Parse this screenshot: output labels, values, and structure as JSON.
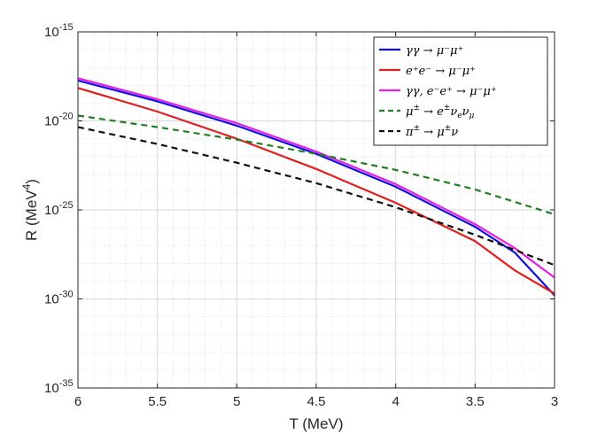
{
  "chart_data": {
    "type": "line",
    "title": "",
    "xlabel": "T (MeV)",
    "ylabel_base": "R (MeV",
    "ylabel_exp": "4",
    "ylabel_close": ")",
    "x_reversed": true,
    "y_scale": "log",
    "xlim": [
      6,
      3
    ],
    "ylim_exponent": [
      -35,
      -15
    ],
    "x_ticks": [
      "6",
      "5.5",
      "5",
      "4.5",
      "4",
      "3.5",
      "3"
    ],
    "y_ticks": [
      {
        "base": "10",
        "exp": "-15"
      },
      {
        "base": "10",
        "exp": "-20"
      },
      {
        "base": "10",
        "exp": "-25"
      },
      {
        "base": "10",
        "exp": "-30"
      },
      {
        "base": "10",
        "exp": "-35"
      }
    ],
    "grid": true,
    "legend_position": "top-right",
    "series": [
      {
        "name": "γγ → μ⁻μ⁺",
        "color": "#1010e0",
        "dash": "solid",
        "points_log10": [
          [
            6.0,
            -17.73
          ],
          [
            5.5,
            -18.9
          ],
          [
            5.0,
            -20.27
          ],
          [
            4.5,
            -21.85
          ],
          [
            4.0,
            -23.7
          ],
          [
            3.5,
            -25.95
          ],
          [
            3.25,
            -27.4
          ],
          [
            3.0,
            -29.8
          ]
        ]
      },
      {
        "name": "e⁺e⁻ → μ⁻μ⁺",
        "color": "#e0201e",
        "dash": "solid",
        "points_log10": [
          [
            6.0,
            -18.15
          ],
          [
            5.5,
            -19.48
          ],
          [
            5.0,
            -21.0
          ],
          [
            4.5,
            -22.7
          ],
          [
            4.0,
            -24.6
          ],
          [
            3.5,
            -26.75
          ],
          [
            3.25,
            -28.4
          ],
          [
            3.0,
            -29.7
          ]
        ]
      },
      {
        "name": "γγ, e⁻e⁺ → μ⁻μ⁺",
        "color": "#e61ee6",
        "dash": "solid",
        "points_log10": [
          [
            6.0,
            -17.6
          ],
          [
            5.5,
            -18.78
          ],
          [
            5.0,
            -20.13
          ],
          [
            4.5,
            -21.72
          ],
          [
            4.0,
            -23.55
          ],
          [
            3.5,
            -25.8
          ],
          [
            3.25,
            -27.15
          ],
          [
            3.0,
            -28.8
          ]
        ]
      },
      {
        "name": "μ^± → e^± ν_e ν_μ",
        "color": "#208020",
        "dash": "dashed",
        "points_log10": [
          [
            6.0,
            -19.7
          ],
          [
            5.5,
            -20.35
          ],
          [
            5.0,
            -21.05
          ],
          [
            4.5,
            -21.85
          ],
          [
            4.0,
            -22.75
          ],
          [
            3.5,
            -23.85
          ],
          [
            3.0,
            -25.25
          ]
        ]
      },
      {
        "name": "π^± → μ^± ν",
        "color": "#101010",
        "dash": "dashed",
        "points_log10": [
          [
            6.0,
            -20.35
          ],
          [
            5.5,
            -21.3
          ],
          [
            5.0,
            -22.35
          ],
          [
            4.5,
            -23.5
          ],
          [
            4.0,
            -24.85
          ],
          [
            3.5,
            -26.4
          ],
          [
            3.0,
            -28.1
          ]
        ]
      }
    ]
  },
  "legend_entries": [
    {
      "type": "plain",
      "text": "γγ → μ⁻μ⁺"
    },
    {
      "type": "plain",
      "text": "e⁺e⁻ → μ⁻μ⁺"
    },
    {
      "type": "plain",
      "text": "γγ, e⁻e⁺ → μ⁻μ⁺"
    },
    {
      "type": "muon",
      "t1": "μ",
      "s1": "±",
      "t2": " → e",
      "s2": "±",
      "t3": "ν",
      "b1": "e",
      "t4": "ν",
      "b2": "μ"
    },
    {
      "type": "pion",
      "t1": "π",
      "s1": "±",
      "t2": " → μ",
      "s2": "±",
      "t3": "ν"
    }
  ]
}
